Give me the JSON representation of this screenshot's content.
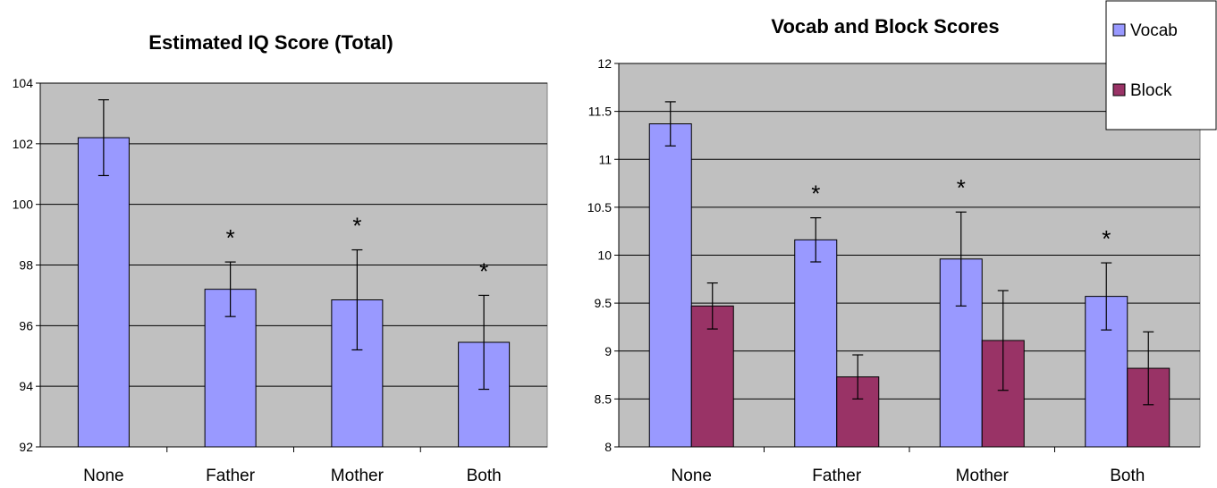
{
  "colors": {
    "plot_bg": "#c0c0c0",
    "vocab": "#9999ff",
    "block": "#993366",
    "grid": "#000000"
  },
  "chart_data": [
    {
      "type": "bar",
      "title": "Estimated IQ Score (Total)",
      "categories": [
        "None",
        "Father",
        "Mother",
        "Both"
      ],
      "ylim": [
        92,
        104
      ],
      "yticks": [
        "92",
        "94",
        "96",
        "98",
        "100",
        "102",
        "104"
      ],
      "grid": true,
      "series": [
        {
          "values": [
            102.2,
            97.2,
            96.85,
            95.45
          ],
          "error": [
            1.25,
            0.9,
            1.65,
            1.55
          ]
        }
      ],
      "annotations": [
        "",
        "*",
        "*",
        "*"
      ]
    },
    {
      "type": "bar",
      "title": "Vocab and Block Scores",
      "categories": [
        "None",
        "Father",
        "Mother",
        "Both"
      ],
      "ylim": [
        8,
        12
      ],
      "yticks": [
        "8",
        "8.5",
        "9",
        "9.5",
        "10",
        "10.5",
        "11",
        "11.5",
        "12"
      ],
      "grid": true,
      "legend": "top-right",
      "series": [
        {
          "name": "Vocab",
          "values": [
            11.37,
            10.16,
            9.96,
            9.57
          ],
          "error": [
            0.23,
            0.23,
            0.49,
            0.35
          ]
        },
        {
          "name": "Block",
          "values": [
            9.47,
            8.73,
            9.11,
            8.82
          ],
          "error": [
            0.24,
            0.23,
            0.52,
            0.38
          ]
        }
      ],
      "annotations": [
        "",
        "*",
        "*",
        "*"
      ]
    }
  ]
}
